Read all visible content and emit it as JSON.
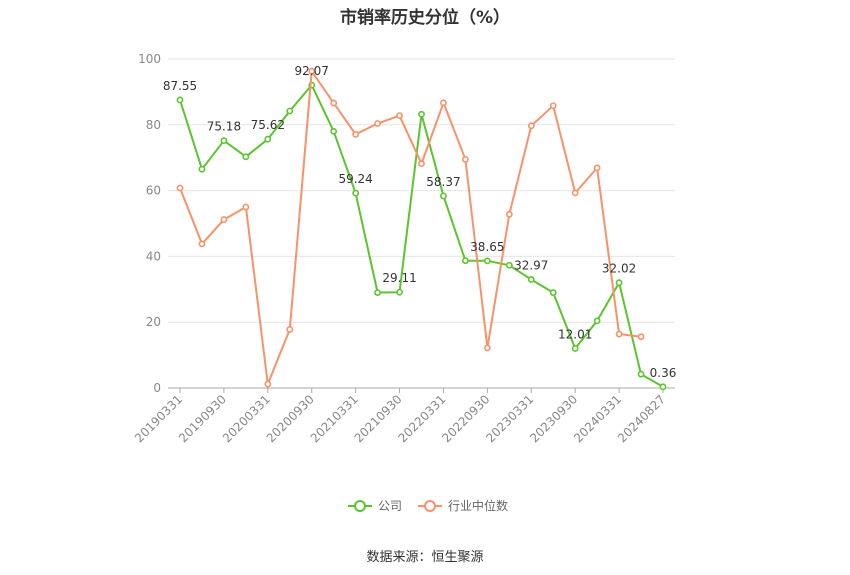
{
  "chart_data": {
    "type": "line",
    "title": "市销率历史分位（%）",
    "xlabel": "",
    "ylabel": "",
    "ylim": [
      0,
      100
    ],
    "yticks": [
      "0",
      "20",
      "40",
      "60",
      "80",
      "100"
    ],
    "xtick_labels": [
      "20190331",
      "20190930",
      "20200331",
      "20200930",
      "20210331",
      "20210930",
      "20220331",
      "20220930",
      "20230331",
      "20230930",
      "20240331",
      "20240827"
    ],
    "grid": true,
    "legend_position": "bottom-center",
    "series": [
      {
        "name": "公司",
        "color": "#5cc42e",
        "values": [
          87.55,
          66.5,
          75.18,
          70.3,
          75.62,
          84.2,
          92.07,
          78.0,
          59.24,
          29.0,
          29.11,
          83.2,
          58.37,
          38.7,
          38.65,
          37.3,
          32.97,
          29.0,
          12.01,
          20.4,
          32.02,
          4.2,
          0.36
        ],
        "labels": [
          "87.55",
          "",
          "75.18",
          "",
          "75.62",
          "",
          "92.07",
          "",
          "59.24",
          "",
          "29.11",
          "",
          "58.37",
          "",
          "38.65",
          "",
          "32.97",
          "",
          "12.01",
          "",
          "32.02",
          "",
          "0.36"
        ]
      },
      {
        "name": "行业中位数",
        "color": "#f7926a",
        "values": [
          60.8,
          43.8,
          51.2,
          55.0,
          1.2,
          17.8,
          96.3,
          86.6,
          77.1,
          80.4,
          82.8,
          68.2,
          86.7,
          69.5,
          12.2,
          52.8,
          79.7,
          85.8,
          59.3,
          66.9,
          16.4,
          15.6,
          null
        ]
      }
    ]
  },
  "source_text": "数据来源：恒生聚源"
}
